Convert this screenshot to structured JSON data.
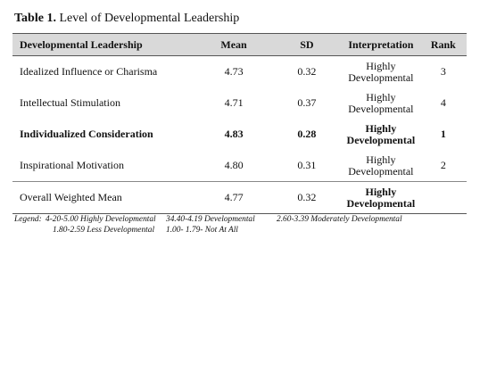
{
  "title": {
    "label": "Table 1.",
    "text": "Level of Developmental Leadership"
  },
  "table": {
    "headers": [
      "Developmental Leadership",
      "Mean",
      "SD",
      "Interpretation",
      "Rank"
    ],
    "rows": [
      {
        "name": "Idealized Influence or Charisma",
        "mean": "4.73",
        "sd": "0.32",
        "interp1": "Highly",
        "interp2": "Developmental",
        "rank": "3"
      },
      {
        "name": "Intellectual Stimulation",
        "mean": "4.71",
        "sd": "0.37",
        "interp1": "Highly",
        "interp2": "Developmental",
        "rank": "4"
      },
      {
        "name": "Individualized Consideration",
        "mean": "4.83",
        "sd": "0.28",
        "interp1": "Highly",
        "interp2": "Developmental",
        "rank": "1"
      },
      {
        "name": "Inspirational Motivation",
        "mean": "4.80",
        "sd": "0.31",
        "interp1": "Highly",
        "interp2": "Developmental",
        "rank": "2"
      }
    ],
    "summary": {
      "name": "Overall Weighted Mean",
      "mean": "4.77",
      "sd": "0.32",
      "interp1": "Highly",
      "interp2": "Developmental",
      "rank": ""
    }
  },
  "legend": {
    "prefix": "Legend:",
    "line1": [
      "4-20-5.00 Highly Developmental",
      "34.40-4.19  Developmental",
      "2.60-3.39 Moderately Developmental"
    ],
    "line2": [
      "1.80-2.59 Less Developmental",
      "1.00- 1.79- Not At All"
    ]
  },
  "colors": {
    "header_bg": "#d9d9d9",
    "text": "#111111",
    "rule": "#555555"
  }
}
